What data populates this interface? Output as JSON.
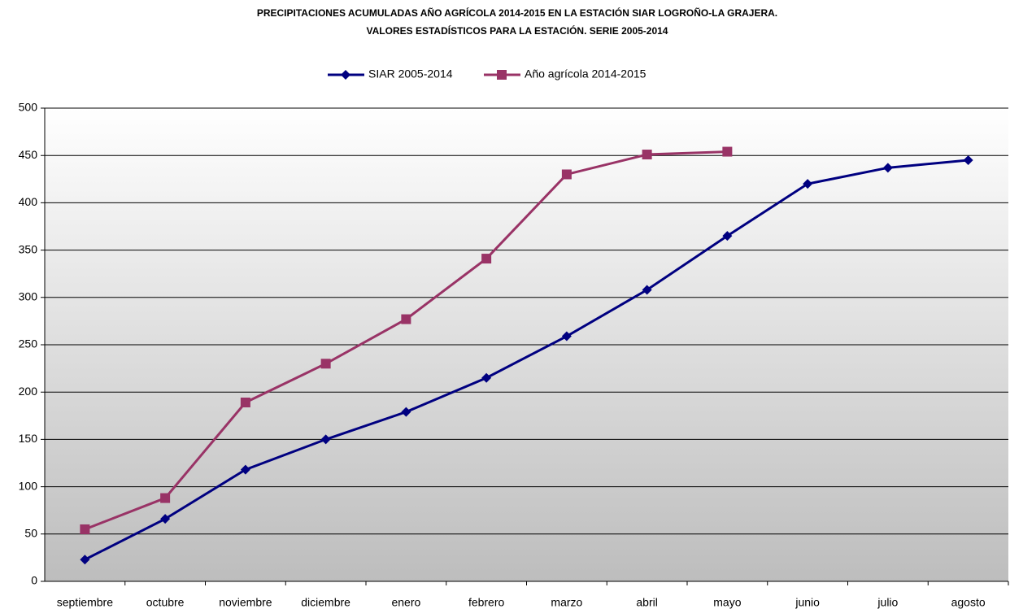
{
  "chart_data": {
    "type": "line",
    "title": [
      "PRECIPITACIONES ACUMULADAS AÑO AGRÍCOLA 2014-2015 EN LA ESTACIÓN SIAR LOGROÑO-LA GRAJERA.",
      "VALORES ESTADÍSTICOS PARA LA ESTACIÓN. SERIE 2005-2014"
    ],
    "categories": [
      "septiembre",
      "octubre",
      "noviembre",
      "diciembre",
      "enero",
      "febrero",
      "marzo",
      "abril",
      "mayo",
      "junio",
      "julio",
      "agosto"
    ],
    "series": [
      {
        "name": "SIAR 2005-2014",
        "color": "#000080",
        "marker": "diamond",
        "values": [
          23,
          66,
          118,
          150,
          179,
          215,
          259,
          308,
          365,
          420,
          437,
          445
        ]
      },
      {
        "name": "Año agrícola 2014-2015",
        "color": "#993366",
        "marker": "square",
        "values": [
          55,
          88,
          189,
          230,
          277,
          341,
          430,
          451,
          454,
          null,
          null,
          null
        ]
      }
    ],
    "ylim": [
      0,
      500
    ],
    "yticks": [
      0,
      50,
      100,
      150,
      200,
      250,
      300,
      350,
      400,
      450,
      500
    ],
    "grid": true,
    "legend": "top"
  }
}
